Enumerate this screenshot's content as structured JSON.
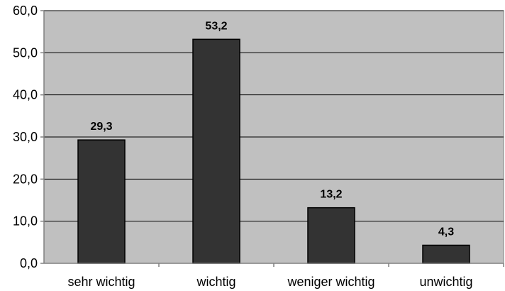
{
  "chart_data": {
    "type": "bar",
    "categories": [
      "sehr wichtig",
      "wichtig",
      "weniger wichtig",
      "unwichtig"
    ],
    "values": [
      29.3,
      53.2,
      13.2,
      4.3
    ],
    "value_labels": [
      "29,3",
      "53,2",
      "13,2",
      "4,3"
    ],
    "y_tick_labels": [
      "0,0",
      "10,0",
      "20,0",
      "30,0",
      "40,0",
      "50,0",
      "60,0"
    ],
    "y_ticks": [
      0,
      10,
      20,
      30,
      40,
      50,
      60
    ],
    "ylim": [
      0,
      60
    ],
    "grid": true,
    "legend": false
  },
  "colors": {
    "plot_background": "#c0c0c0",
    "bar_fill": "#333333",
    "bar_stroke": "#000000",
    "gridline": "#000000",
    "axis": "#808080"
  }
}
